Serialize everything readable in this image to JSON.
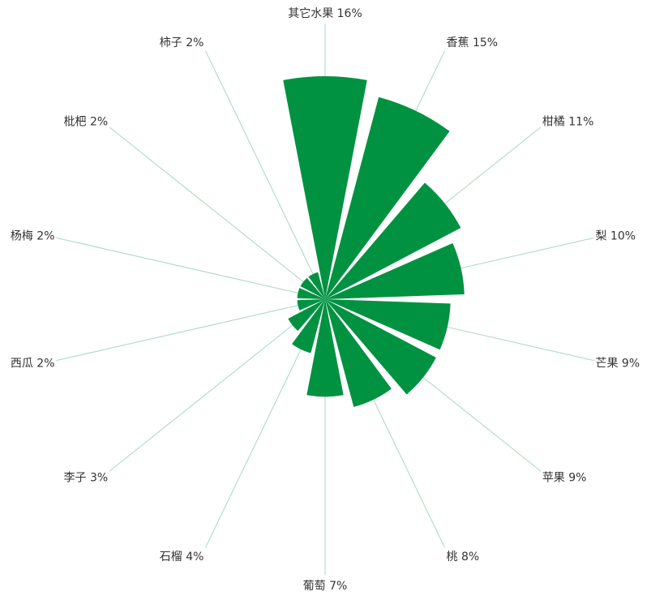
{
  "chart_data": {
    "type": "rose",
    "title": "",
    "unit": "%",
    "categories": [
      "其它水果",
      "香蕉",
      "柑橘",
      "梨",
      "芒果",
      "苹果",
      "桃",
      "葡萄",
      "石榴",
      "李子",
      "西瓜",
      "杨梅",
      "枇杷",
      "柿子"
    ],
    "values": [
      16,
      15,
      11,
      10,
      9,
      9,
      8,
      7,
      4,
      3,
      2,
      2,
      2,
      2
    ],
    "labels": [
      "其它水果 16%",
      "香蕉 15%",
      "柑橘 11%",
      "梨 10%",
      "芒果 9%",
      "苹果 9%",
      "桃 8%",
      "葡萄 7%",
      "石榴 4%",
      "李子 3%",
      "西瓜 2%",
      "杨梅 2%",
      "枇杷 2%",
      "柿子 2%"
    ],
    "colors": {
      "slice": "#009241",
      "leader_line": "#a8d8bd",
      "label_text": "#333333"
    },
    "legend": "none",
    "grid": false
  }
}
